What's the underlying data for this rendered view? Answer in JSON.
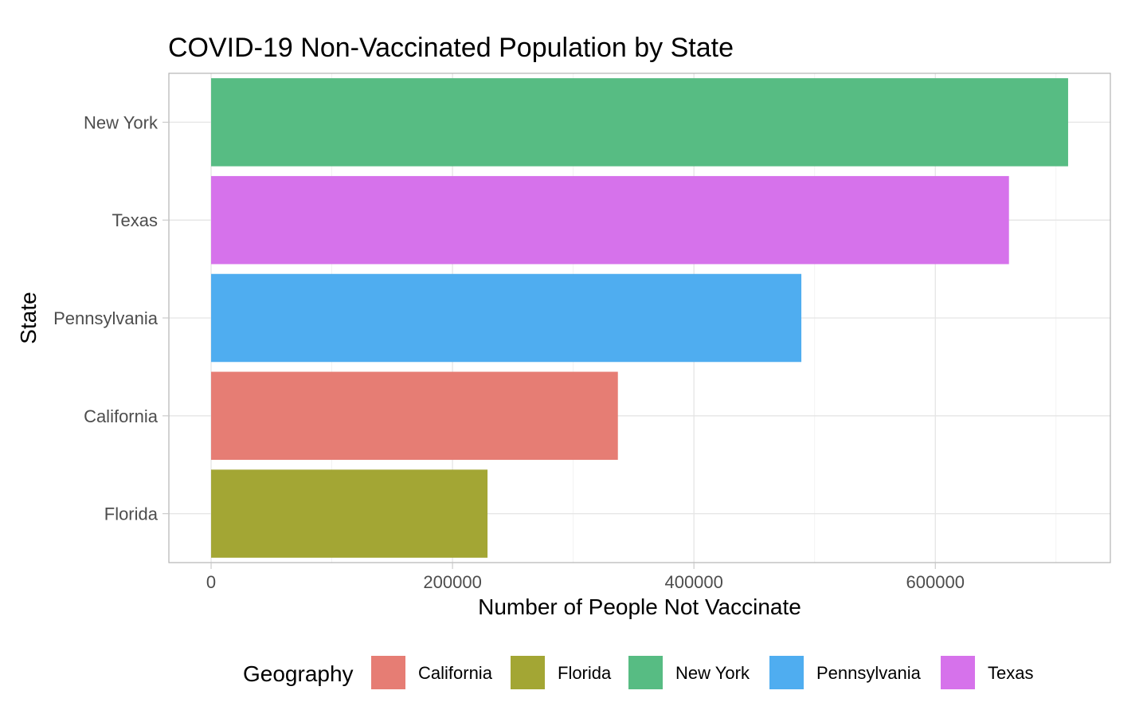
{
  "chart_data": {
    "type": "bar",
    "orientation": "horizontal",
    "title": "COVID-19 Non-Vaccinated Population by State",
    "xlabel": "Number of People Not Vaccinate",
    "ylabel": "State",
    "categories": [
      "New York",
      "Texas",
      "Pennsylvania",
      "California",
      "Florida"
    ],
    "values": [
      710000,
      661000,
      489000,
      337000,
      229000
    ],
    "bar_colors": [
      "#57BC83",
      "#D672EB",
      "#4FADF0",
      "#E67D74",
      "#A3A634"
    ],
    "xlim": [
      -35000,
      745000
    ],
    "x_ticks": [
      0,
      200000,
      400000,
      600000
    ],
    "x_tick_labels": [
      "0",
      "200000",
      "400000",
      "600000"
    ],
    "grid": true,
    "legend": {
      "title": "Geography",
      "position": "bottom",
      "items": [
        {
          "label": "California",
          "color": "#E67D74"
        },
        {
          "label": "Florida",
          "color": "#A3A634"
        },
        {
          "label": "New York",
          "color": "#57BC83"
        },
        {
          "label": "Pennsylvania",
          "color": "#4FADF0"
        },
        {
          "label": "Texas",
          "color": "#D672EB"
        }
      ]
    }
  }
}
